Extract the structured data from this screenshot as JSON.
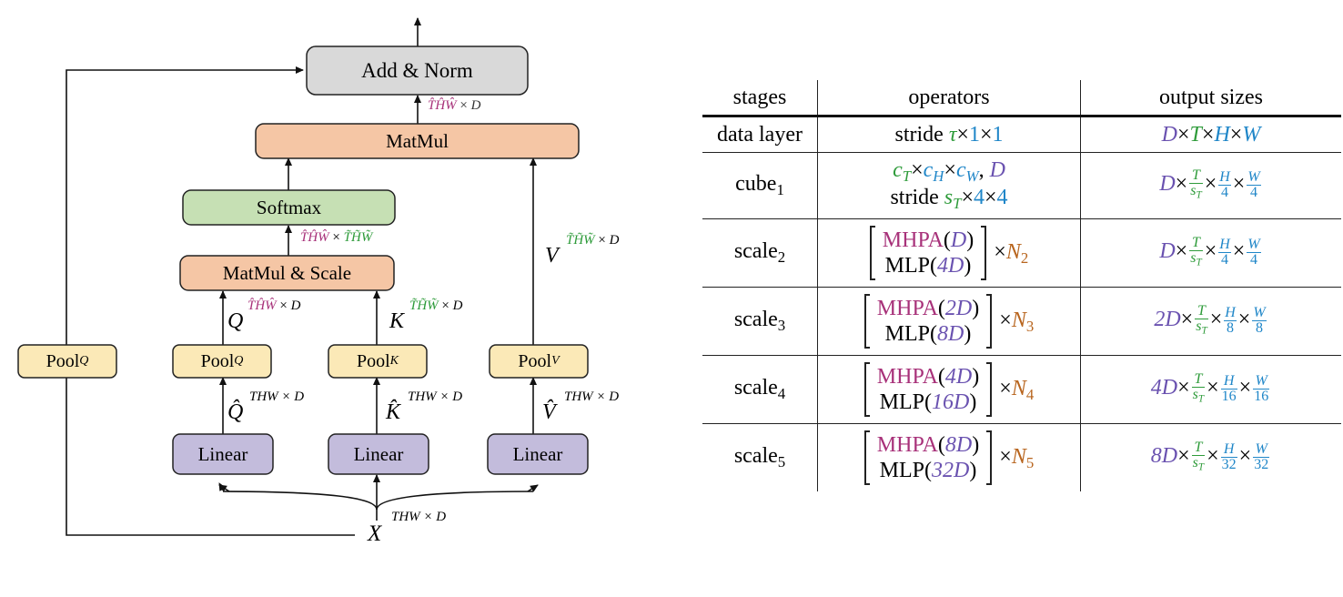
{
  "diagram": {
    "add_norm": "Add & Norm",
    "matmul": "MatMul",
    "softmax": "Softmax",
    "matmul_scale": "MatMul & Scale",
    "pool_q_left": "Pool",
    "pool_q_left_sub": "Q",
    "pool_q": "Pool",
    "pool_q_sub": "Q",
    "pool_k": "Pool",
    "pool_k_sub": "K",
    "pool_v": "Pool",
    "pool_v_sub": "V",
    "linear_q": "Linear",
    "linear_k": "Linear",
    "linear_v": "Linear",
    "label_q": "Q",
    "label_k": "K",
    "label_v": "V",
    "label_q_hat": "Q̂",
    "label_k_hat": "K̂",
    "label_v_hat": "V̂",
    "label_x": "X",
    "dim_thw_d": "THW × D",
    "dim_hat": "T̂ĤŴ",
    "dim_tilde": "T̃H̃W̃",
    "times": "×",
    "d": "D",
    "colors": {
      "add_norm_fill": "#d9d9d9",
      "matmul_fill": "#f5c6a5",
      "softmax_fill": "#c6e0b4",
      "pool_fill": "#fbe9b7",
      "linear_fill": "#c3bcdc",
      "magenta": "#a8327a",
      "green": "#2e9b3a",
      "purple": "#6a52b0",
      "blue": "#1f86c8",
      "orange": "#b8651e"
    }
  },
  "table": {
    "headers": [
      "stages",
      "operators",
      "output sizes"
    ],
    "rows": [
      {
        "stage": "data layer",
        "op_text": "stride",
        "op_tau": "τ",
        "op_1a": "1",
        "op_1b": "1",
        "out": [
          "D",
          "T",
          "H",
          "W"
        ]
      },
      {
        "stage": "cube",
        "stage_sub": "1",
        "op_line1": [
          "c",
          "T",
          "c",
          "H",
          "c",
          "W",
          "D"
        ],
        "op_line2_text": "stride",
        "op_line2_s": "s",
        "op_line2_sub": "T",
        "op_line2_4a": "4",
        "op_line2_4b": "4",
        "out_coef": "D",
        "out_t": "T",
        "out_st": "s",
        "out_st_sub": "T",
        "out_h": "H",
        "out_hd": "4",
        "out_w": "W",
        "out_wd": "4"
      },
      {
        "stage": "scale",
        "stage_sub": "2",
        "mhpa": "MHPA",
        "mhpa_arg": "D",
        "mlp": "MLP",
        "mlp_arg": "4D",
        "n": "N",
        "n_sub": "2",
        "out_coef": "D",
        "out_hd": "4",
        "out_wd": "4"
      },
      {
        "stage": "scale",
        "stage_sub": "3",
        "mhpa": "MHPA",
        "mhpa_arg": "2D",
        "mlp": "MLP",
        "mlp_arg": "8D",
        "n": "N",
        "n_sub": "3",
        "out_coef": "2D",
        "out_hd": "8",
        "out_wd": "8"
      },
      {
        "stage": "scale",
        "stage_sub": "4",
        "mhpa": "MHPA",
        "mhpa_arg": "4D",
        "mlp": "MLP",
        "mlp_arg": "16D",
        "n": "N",
        "n_sub": "4",
        "out_coef": "4D",
        "out_hd": "16",
        "out_wd": "16"
      },
      {
        "stage": "scale",
        "stage_sub": "5",
        "mhpa": "MHPA",
        "mhpa_arg": "8D",
        "mlp": "MLP",
        "mlp_arg": "32D",
        "n": "N",
        "n_sub": "5",
        "out_coef": "8D",
        "out_hd": "32",
        "out_wd": "32"
      }
    ],
    "common": {
      "times": "×",
      "T": "T",
      "s": "s",
      "sub_T": "T",
      "H": "H",
      "W": "W"
    }
  }
}
